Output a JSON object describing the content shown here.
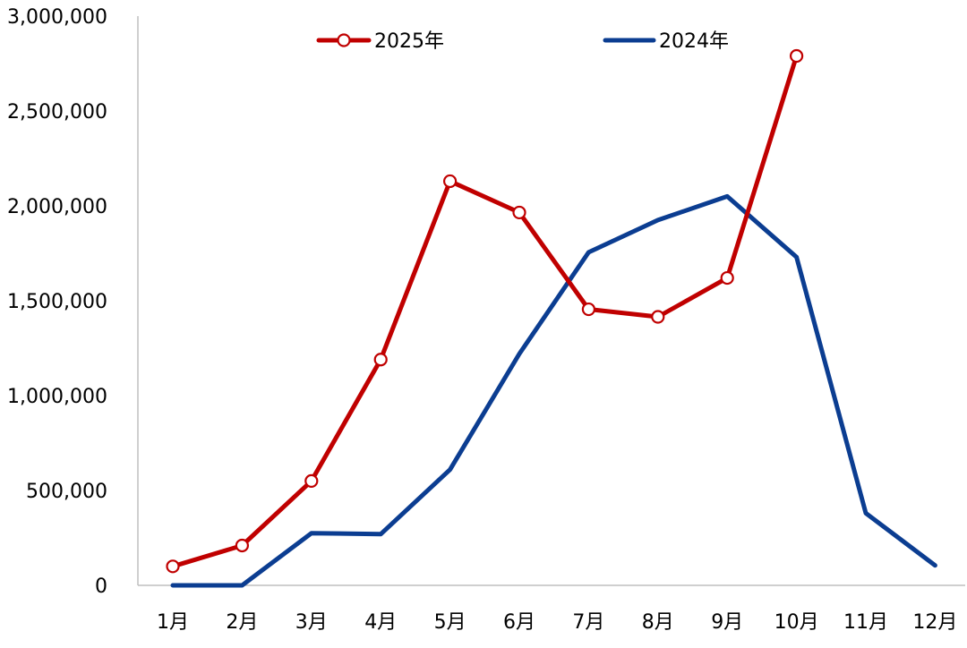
{
  "chart_data": {
    "type": "line",
    "categories": [
      "1月",
      "2月",
      "3月",
      "4月",
      "5月",
      "6月",
      "7月",
      "8月",
      "9月",
      "10月",
      "11月",
      "12月"
    ],
    "series": [
      {
        "name": "2025年",
        "color": "#C00000",
        "marker": "hollow-circle",
        "values": [
          100000,
          210000,
          550000,
          1190000,
          2130000,
          1965000,
          1455000,
          1415000,
          1620000,
          2790000,
          null,
          null
        ]
      },
      {
        "name": "2024年",
        "color": "#0B3D91",
        "marker": "none",
        "values": [
          0,
          0,
          275000,
          270000,
          610000,
          1220000,
          1755000,
          1925000,
          2050000,
          1730000,
          380000,
          105000
        ]
      }
    ],
    "ylim": [
      0,
      3000000
    ],
    "yticks": [
      "0",
      "500,000",
      "1,000,000",
      "1,500,000",
      "2,000,000",
      "2,500,000",
      "3,000,000"
    ],
    "grid": false,
    "legend": "top-center"
  }
}
